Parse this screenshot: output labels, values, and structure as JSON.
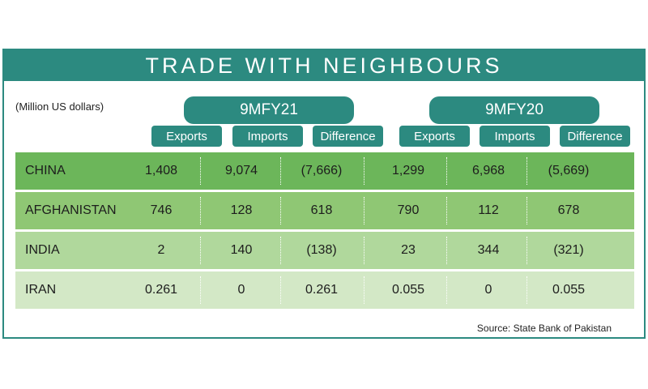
{
  "title": "TRADE WITH NEIGHBOURS",
  "units_note": "(Million US dollars)",
  "source": "Source: State Bank of Pakistan",
  "colors": {
    "header": "#2c8a80",
    "row_shades": [
      "#6cb65a",
      "#8fc774",
      "#b0d89c",
      "#d3e8c6"
    ]
  },
  "chart_data": {
    "type": "table",
    "title": "TRADE WITH NEIGHBOURS",
    "periods": [
      {
        "label": "9MFY21",
        "columns": [
          "Exports",
          "Imports",
          "Difference"
        ]
      },
      {
        "label": "9MFY20",
        "columns": [
          "Exports",
          "Imports",
          "Difference"
        ]
      }
    ],
    "rows": [
      {
        "country": "CHINA",
        "values": [
          "1,408",
          "9,074",
          "(7,666)",
          "1,299",
          "6,968",
          "(5,669)"
        ]
      },
      {
        "country": "AFGHANISTAN",
        "values": [
          "746",
          "128",
          "618",
          "790",
          "112",
          "678"
        ]
      },
      {
        "country": "INDIA",
        "values": [
          "2",
          "140",
          "(138)",
          "23",
          "344",
          "(321)"
        ]
      },
      {
        "country": "IRAN",
        "values": [
          "0.261",
          "0",
          "0.261",
          "0.055",
          "0",
          "0.055"
        ]
      }
    ]
  }
}
